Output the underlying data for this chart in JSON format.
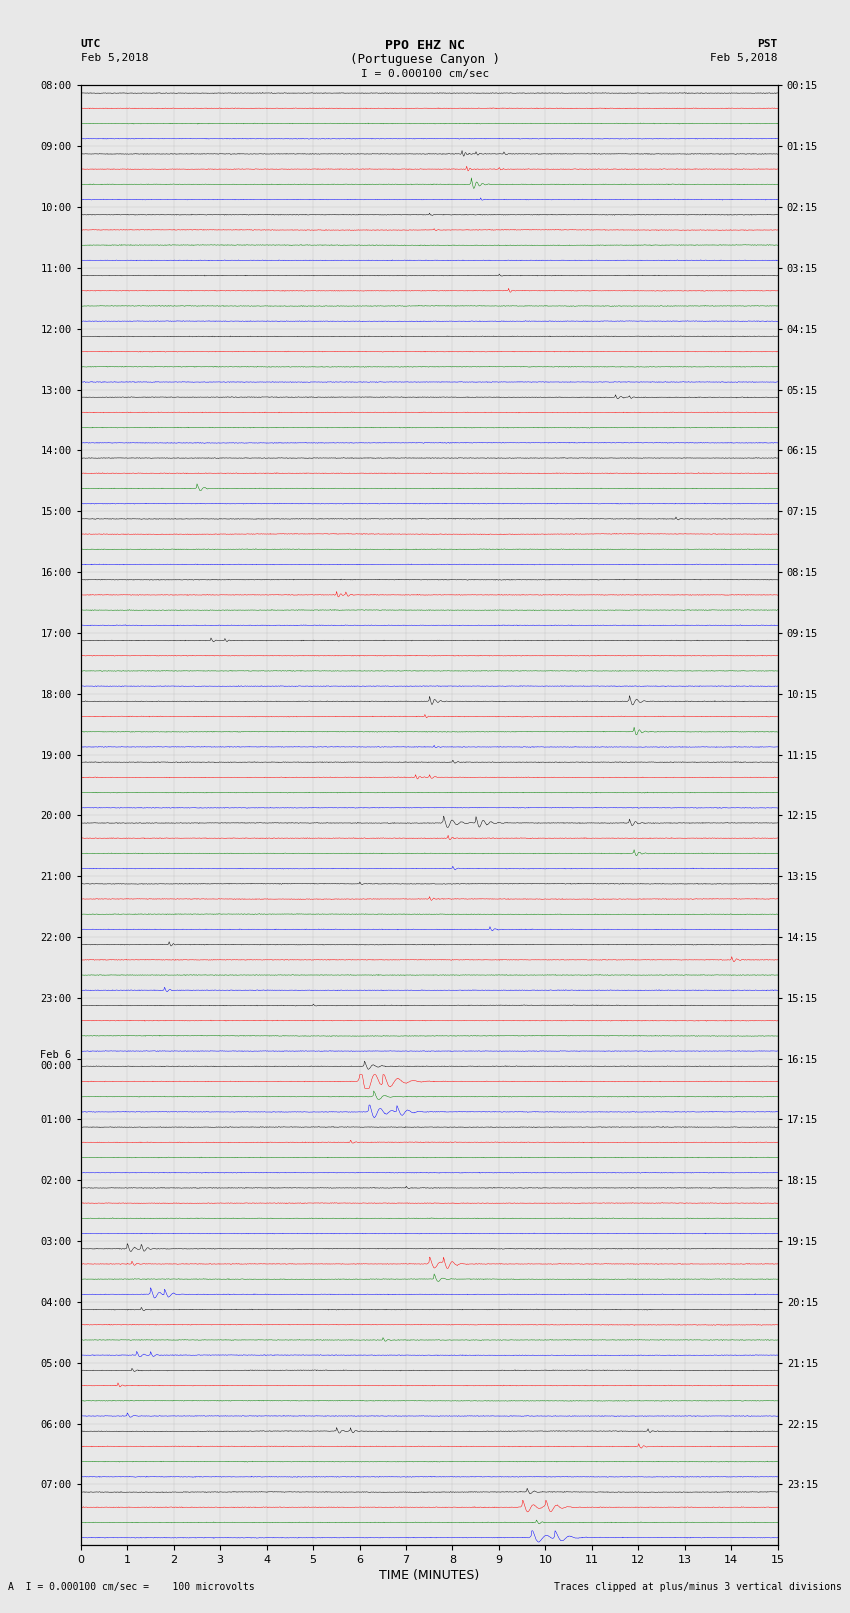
{
  "title_line1": "PPO EHZ NC",
  "title_line2": "(Portuguese Canyon )",
  "scale_label": "I = 0.000100 cm/sec",
  "utc_label": "UTC",
  "utc_date": "Feb 5,2018",
  "pst_label": "PST",
  "pst_date": "Feb 5,2018",
  "xlabel": "TIME (MINUTES)",
  "footer_left": "A  I = 0.000100 cm/sec =    100 microvolts",
  "footer_right": "Traces clipped at plus/minus 3 vertical divisions",
  "xmin": 0,
  "xmax": 15,
  "num_hours": 24,
  "traces_per_hour": 4,
  "trace_colors": [
    "black",
    "red",
    "green",
    "blue"
  ],
  "left_labels": [
    "08:00",
    "09:00",
    "10:00",
    "11:00",
    "12:00",
    "13:00",
    "14:00",
    "15:00",
    "16:00",
    "17:00",
    "18:00",
    "19:00",
    "20:00",
    "21:00",
    "22:00",
    "23:00",
    "Feb 6\n00:00",
    "01:00",
    "02:00",
    "03:00",
    "04:00",
    "05:00",
    "06:00",
    "07:00"
  ],
  "right_labels": [
    "00:15",
    "01:15",
    "02:15",
    "03:15",
    "04:15",
    "05:15",
    "06:15",
    "07:15",
    "08:15",
    "09:15",
    "10:15",
    "11:15",
    "12:15",
    "13:15",
    "14:15",
    "15:15",
    "16:15",
    "17:15",
    "18:15",
    "19:15",
    "20:15",
    "21:15",
    "22:15",
    "23:15"
  ],
  "background_color": "#e8e8e8",
  "fig_width": 8.5,
  "fig_height": 16.13,
  "seed": 12345
}
